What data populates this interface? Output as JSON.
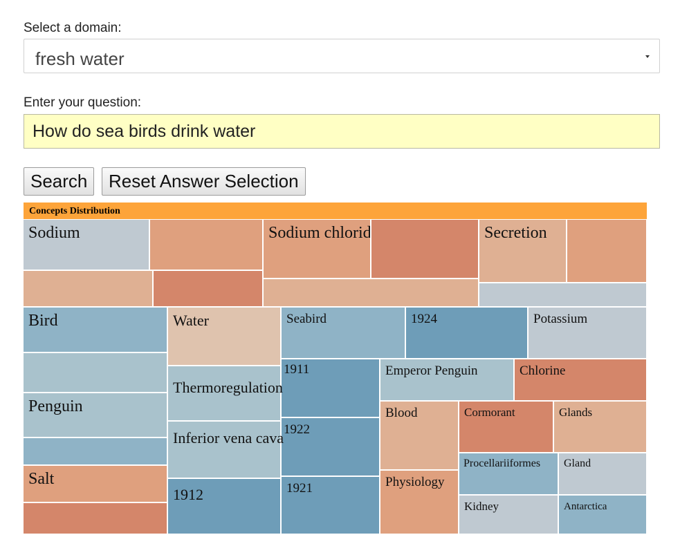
{
  "form": {
    "domain_label": "Select a domain:",
    "domain_value": "fresh water",
    "question_label": "Enter your question:",
    "question_value": "How do sea birds drink water",
    "search_button": "Search",
    "reset_button": "Reset Answer Selection"
  },
  "treemap": {
    "title": "Concepts Distribution",
    "concepts": [
      {
        "label": "Sodium",
        "color": "#bfc9d1"
      },
      {
        "label": "",
        "color": "#dfa07e"
      },
      {
        "label": "",
        "color": "#dfb093"
      },
      {
        "label": "",
        "color": "#d4866a"
      },
      {
        "label": "Sodium chloride",
        "color": "#dfa07e"
      },
      {
        "label": "",
        "color": "#d4866a"
      },
      {
        "label": "",
        "color": "#dfb093"
      },
      {
        "label": "Secretion",
        "color": "#dfb093"
      },
      {
        "label": "",
        "color": "#dfa07e"
      },
      {
        "label": "",
        "color": "#bfc9d1"
      },
      {
        "label": "Bird",
        "color": "#8fb3c6"
      },
      {
        "label": "",
        "color": "#a9c2cc"
      },
      {
        "label": "Penguin",
        "color": "#a9c2cc"
      },
      {
        "label": "",
        "color": "#8fb3c6"
      },
      {
        "label": "Salt",
        "color": "#dfa07e"
      },
      {
        "label": "",
        "color": "#d4866a"
      },
      {
        "label": "Water",
        "color": "#dfc3ae"
      },
      {
        "label": "Thermoregulation",
        "color": "#a9c2cc"
      },
      {
        "label": "Inferior vena cava",
        "color": "#a9c2cc"
      },
      {
        "label": "1912",
        "color": "#6e9db8"
      },
      {
        "label": "Seabird",
        "color": "#8fb3c6"
      },
      {
        "label": "1924",
        "color": "#6e9db8"
      },
      {
        "label": "Potassium",
        "color": "#bfc9d1"
      },
      {
        "label": "1911",
        "color": "#6e9db8"
      },
      {
        "label": "1922",
        "color": "#6e9db8"
      },
      {
        "label": "1921",
        "color": "#6e9db8"
      },
      {
        "label": "Emperor Penguin",
        "color": "#a9c2cc"
      },
      {
        "label": "Chlorine",
        "color": "#d4866a"
      },
      {
        "label": "Blood",
        "color": "#dfb093"
      },
      {
        "label": "Physiology",
        "color": "#dfa07e"
      },
      {
        "label": "Cormorant",
        "color": "#d4866a"
      },
      {
        "label": "Glands",
        "color": "#dfb093"
      },
      {
        "label": "Procellariiformes",
        "color": "#8fb3c6"
      },
      {
        "label": "Gland",
        "color": "#bfc9d1"
      },
      {
        "label": "Kidney",
        "color": "#bfc9d1"
      },
      {
        "label": "Antarctica",
        "color": "#8fb3c6"
      }
    ]
  }
}
